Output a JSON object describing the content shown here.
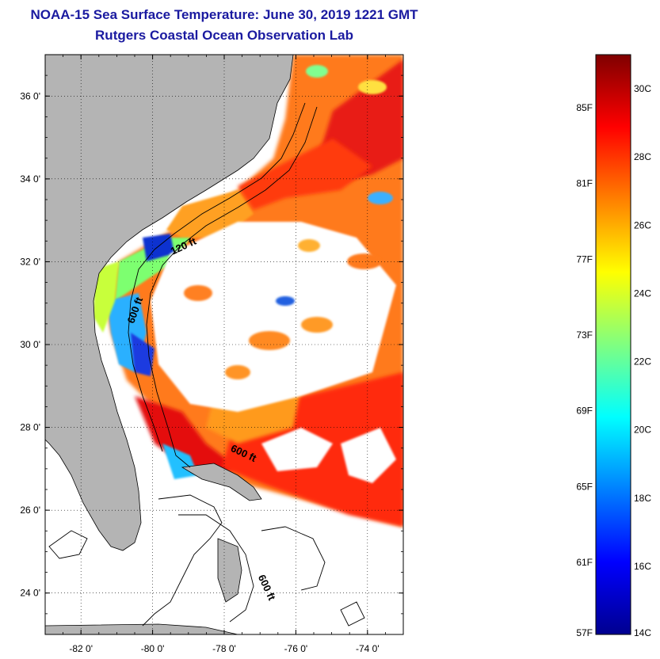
{
  "header": {
    "title": "NOAA-15 Sea Surface Temperature:  June 30, 2019 1221 GMT",
    "subtitle": "Rutgers Coastal Ocean Observation Lab"
  },
  "map": {
    "lon_range": [
      -83,
      -73
    ],
    "lat_range": [
      23,
      37
    ],
    "lat_ticks": [
      {
        "value": 36,
        "label": "36 0'"
      },
      {
        "value": 34,
        "label": "34 0'"
      },
      {
        "value": 32,
        "label": "32 0'"
      },
      {
        "value": 30,
        "label": "30 0'"
      },
      {
        "value": 28,
        "label": "28 0'"
      },
      {
        "value": 26,
        "label": "26 0'"
      },
      {
        "value": 24,
        "label": "24 0'"
      }
    ],
    "lon_ticks": [
      {
        "value": -82,
        "label": "-82 0'"
      },
      {
        "value": -80,
        "label": "-80 0'"
      },
      {
        "value": -78,
        "label": "-78 0'"
      },
      {
        "value": -76,
        "label": "-76 0'"
      },
      {
        "value": -74,
        "label": "-74 0'"
      }
    ],
    "contour_labels": [
      {
        "text": "120 ft",
        "lon": -79.1,
        "lat": 32.3
      },
      {
        "text": "600 ft",
        "lon": -80.4,
        "lat": 30.8
      },
      {
        "text": "600 ft",
        "lon": -77.5,
        "lat": 27.3
      },
      {
        "text": "600 ft",
        "lon": -76.9,
        "lat": 24.1
      }
    ],
    "grid": true,
    "colors": {
      "land": "#b4b4b4",
      "cloud_no_data": "#ffffff",
      "outside_swath": "#ffffff"
    }
  },
  "colorbar": {
    "range_c": [
      14,
      31
    ],
    "celsius_labels": [
      {
        "value": 30,
        "label": "30C"
      },
      {
        "value": 28,
        "label": "28C"
      },
      {
        "value": 26,
        "label": "26C"
      },
      {
        "value": 24,
        "label": "24C"
      },
      {
        "value": 22,
        "label": "22C"
      },
      {
        "value": 20,
        "label": "20C"
      },
      {
        "value": 18,
        "label": "18C"
      },
      {
        "value": 16,
        "label": "16C"
      },
      {
        "value": 14,
        "label": "14C"
      }
    ],
    "fahrenheit_labels": [
      {
        "value": 85,
        "label": "85F"
      },
      {
        "value": 81,
        "label": "81F"
      },
      {
        "value": 77,
        "label": "77F"
      },
      {
        "value": 73,
        "label": "73F"
      },
      {
        "value": 69,
        "label": "69F"
      },
      {
        "value": 65,
        "label": "65F"
      },
      {
        "value": 61,
        "label": "61F"
      },
      {
        "value": 57,
        "label": "57F"
      }
    ],
    "stops": [
      "#7f0000",
      "#ff0000",
      "#ff8000",
      "#ffff00",
      "#80ff80",
      "#00ffff",
      "#0080ff",
      "#0000ff",
      "#00008f"
    ]
  }
}
